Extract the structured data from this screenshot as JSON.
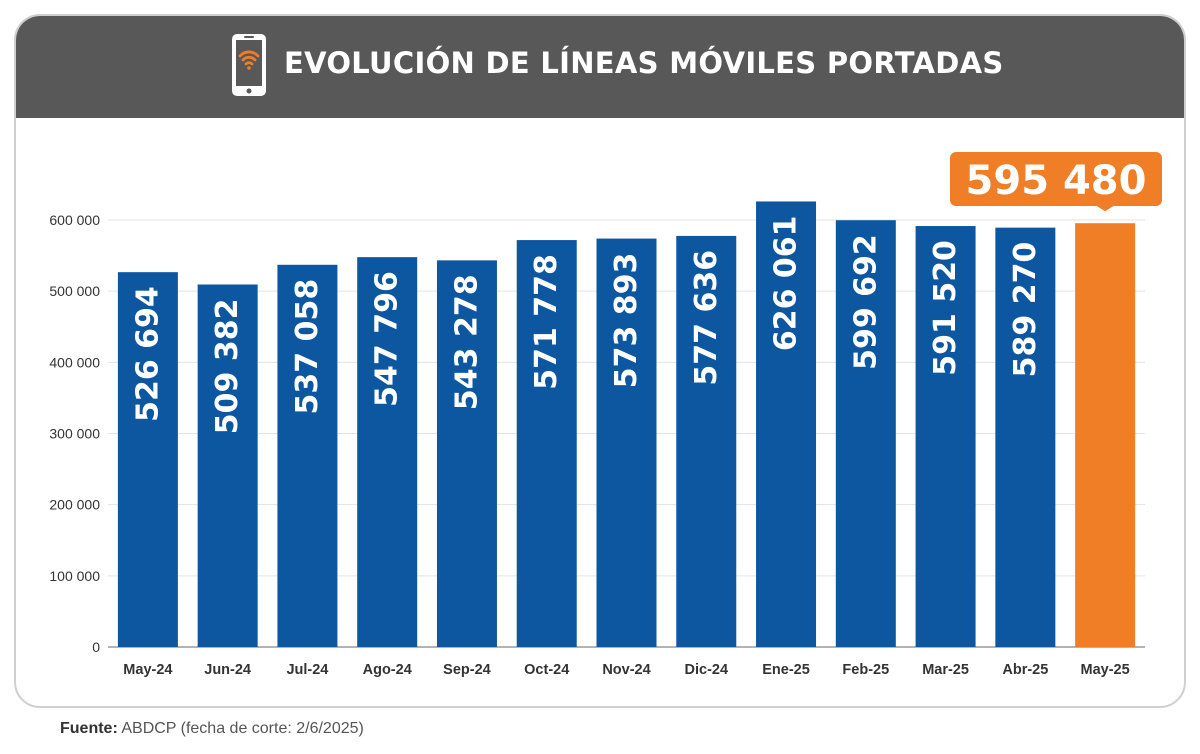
{
  "header": {
    "title": "EVOLUCIÓN DE LÍNEAS MÓVILES PORTADAS",
    "icon": "smartphone-wifi-icon"
  },
  "highlight": {
    "label": "595 480"
  },
  "source": {
    "label": "Fuente:",
    "text": "ABDCP (fecha de corte: 2/6/2025)"
  },
  "colors": {
    "bar": "#0d57a0",
    "highlight": "#f07e26",
    "header": "#585858",
    "grid": "#e3e3e3"
  },
  "chart_data": {
    "type": "bar",
    "title": "EVOLUCIÓN DE LÍNEAS MÓVILES PORTADAS",
    "xlabel": "",
    "ylabel": "",
    "categories": [
      "May-24",
      "Jun-24",
      "Jul-24",
      "Ago-24",
      "Sep-24",
      "Oct-24",
      "Nov-24",
      "Dic-24",
      "Ene-25",
      "Feb-25",
      "Mar-25",
      "Abr-25",
      "May-25"
    ],
    "values": [
      526694,
      509382,
      537058,
      547796,
      543278,
      571778,
      573893,
      577636,
      626061,
      599692,
      591520,
      589270,
      595480
    ],
    "data_labels": [
      "526 694",
      "509 382",
      "537 058",
      "547 796",
      "543 278",
      "571 778",
      "573 893",
      "577 636",
      "626 061",
      "599 692",
      "591 520",
      "589 270",
      "595 480"
    ],
    "ylim": [
      0,
      600000
    ],
    "yticks": [
      0,
      100000,
      200000,
      300000,
      400000,
      500000,
      600000
    ],
    "ytick_labels": [
      "0",
      "100 000",
      "200 000",
      "300 000",
      "400 000",
      "500 000",
      "600 000"
    ],
    "highlight_index": 12,
    "grid": true,
    "legend": "none"
  }
}
